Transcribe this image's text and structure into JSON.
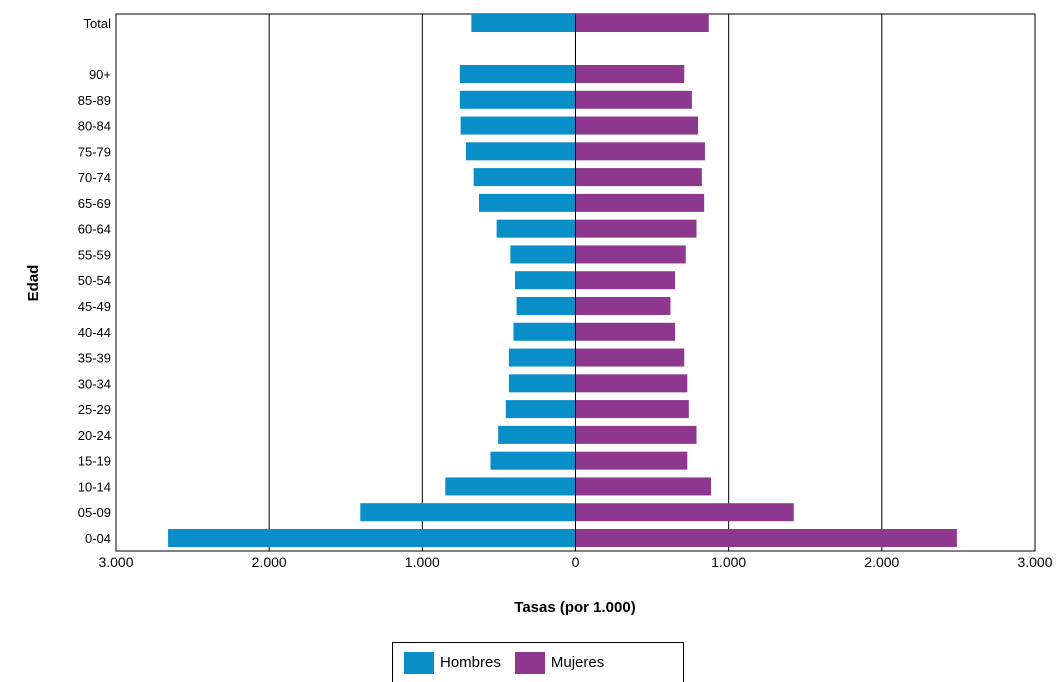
{
  "chart_data": {
    "type": "bar",
    "orientation": "horizontal",
    "xlabel": "Tasas (por 1.000)",
    "ylabel": "Edad",
    "xlim": [
      -3000,
      3000
    ],
    "x_ticks": [
      "3.000",
      "2.000",
      "1.000",
      "0",
      "1.000",
      "2.000",
      "3.000"
    ],
    "grid": "vertical lines at 1.000 and 2.000 on each side",
    "legend_position": "bottom-center",
    "categories": [
      "Total",
      "90+",
      "85-89",
      "80-84",
      "75-79",
      "70-74",
      "65-69",
      "60-64",
      "55-59",
      "50-54",
      "45-49",
      "40-44",
      "35-39",
      "30-34",
      "25-29",
      "20-24",
      "15-19",
      "10-14",
      "05-09",
      "0-04"
    ],
    "series": [
      {
        "name": "Hombres",
        "color": "#0a8ec7",
        "side": "left",
        "values": [
          680,
          755,
          755,
          750,
          715,
          665,
          630,
          515,
          425,
          395,
          385,
          405,
          435,
          435,
          455,
          505,
          555,
          850,
          1405,
          2660
        ]
      },
      {
        "name": "Mujeres",
        "color": "#8e378f",
        "side": "right",
        "values": [
          870,
          710,
          760,
          800,
          845,
          825,
          840,
          790,
          720,
          650,
          620,
          650,
          710,
          730,
          740,
          790,
          730,
          885,
          1425,
          2490
        ]
      }
    ]
  }
}
